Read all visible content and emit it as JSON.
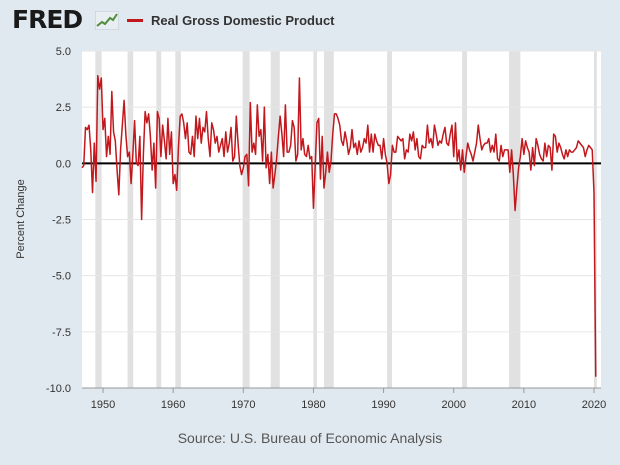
{
  "brand": {
    "logo_text": "FRED",
    "logo_mark_icon": "trend-chart-icon"
  },
  "chart_data": {
    "type": "line",
    "title": "",
    "xlabel": "",
    "ylabel": "Percent Change",
    "xlim": [
      1947,
      2021
    ],
    "ylim": [
      -10,
      5
    ],
    "x_ticks": [
      1950,
      1960,
      1970,
      1980,
      1990,
      2000,
      2010,
      2020
    ],
    "x_tick_labels": [
      "1950",
      "1960",
      "1970",
      "1980",
      "1990",
      "2000",
      "2010",
      "2020"
    ],
    "y_ticks": [
      5,
      2.5,
      0,
      -2.5,
      -5,
      -7.5,
      -10
    ],
    "y_tick_labels": [
      "5.0",
      "2.5",
      "0.0",
      "-2.5",
      "-5.0",
      "-7.5",
      "-10.0"
    ],
    "grid": true,
    "legend_position": "top-left",
    "recessions": [
      [
        1948.9,
        1949.8
      ],
      [
        1953.5,
        1954.3
      ],
      [
        1957.6,
        1958.3
      ],
      [
        1960.3,
        1961.1
      ],
      [
        1969.9,
        1970.9
      ],
      [
        1973.9,
        1975.2
      ],
      [
        1980.0,
        1980.5
      ],
      [
        1981.5,
        1982.9
      ],
      [
        1990.5,
        1991.2
      ],
      [
        2001.2,
        2001.9
      ],
      [
        2007.9,
        2009.5
      ],
      [
        2020.0,
        2020.4
      ]
    ],
    "series": [
      {
        "name": "Real Gross Domestic Product",
        "color": "#c2171c",
        "points": [
          [
            1947.0,
            -0.2
          ],
          [
            1947.25,
            -0.1
          ],
          [
            1947.5,
            1.6
          ],
          [
            1947.75,
            1.5
          ],
          [
            1948.0,
            1.7
          ],
          [
            1948.25,
            0.6
          ],
          [
            1948.5,
            -1.3
          ],
          [
            1948.75,
            0.9
          ],
          [
            1949.0,
            -0.8
          ],
          [
            1949.25,
            3.9
          ],
          [
            1949.5,
            3.3
          ],
          [
            1949.75,
            3.8
          ],
          [
            1950.0,
            1.5
          ],
          [
            1950.25,
            2.0
          ],
          [
            1950.5,
            0.3
          ],
          [
            1950.75,
            1.2
          ],
          [
            1951.0,
            0.4
          ],
          [
            1951.25,
            3.2
          ],
          [
            1951.5,
            1.4
          ],
          [
            1951.75,
            1.0
          ],
          [
            1952.0,
            -0.3
          ],
          [
            1952.25,
            -1.4
          ],
          [
            1952.5,
            0.6
          ],
          [
            1952.75,
            1.7
          ],
          [
            1953.0,
            2.8
          ],
          [
            1953.25,
            1.3
          ],
          [
            1953.5,
            0.3
          ],
          [
            1953.75,
            0.5
          ],
          [
            1954.0,
            -0.9
          ],
          [
            1954.25,
            0.4
          ],
          [
            1954.5,
            1.9
          ],
          [
            1954.75,
            0.0
          ],
          [
            1955.0,
            -0.1
          ],
          [
            1955.25,
            1.2
          ],
          [
            1955.5,
            -2.5
          ],
          [
            1955.75,
            0.4
          ],
          [
            1956.0,
            2.3
          ],
          [
            1956.25,
            1.8
          ],
          [
            1956.5,
            2.2
          ],
          [
            1956.75,
            1.2
          ],
          [
            1957.0,
            -0.3
          ],
          [
            1957.25,
            0.9
          ],
          [
            1957.5,
            -1.1
          ],
          [
            1957.75,
            2.3
          ],
          [
            1958.0,
            2.0
          ],
          [
            1958.25,
            0.3
          ],
          [
            1958.5,
            1.7
          ],
          [
            1958.75,
            1.0
          ],
          [
            1959.0,
            0.2
          ],
          [
            1959.25,
            2.0
          ],
          [
            1959.5,
            0.4
          ],
          [
            1959.75,
            1.4
          ],
          [
            1960.0,
            -0.9
          ],
          [
            1960.25,
            -0.5
          ],
          [
            1960.5,
            -1.2
          ],
          [
            1960.75,
            0.7
          ],
          [
            1961.0,
            2.1
          ],
          [
            1961.25,
            2.2
          ],
          [
            1961.5,
            1.8
          ],
          [
            1961.75,
            1.1
          ],
          [
            1962.0,
            1.8
          ],
          [
            1962.25,
            0.5
          ],
          [
            1962.5,
            0.4
          ],
          [
            1962.75,
            1.2
          ],
          [
            1963.0,
            0.3
          ],
          [
            1963.25,
            2.1
          ],
          [
            1963.5,
            1.1
          ],
          [
            1963.75,
            2.0
          ],
          [
            1964.0,
            0.9
          ],
          [
            1964.25,
            1.6
          ],
          [
            1964.5,
            1.4
          ],
          [
            1964.75,
            2.3
          ],
          [
            1965.0,
            1.1
          ],
          [
            1965.25,
            0.3
          ],
          [
            1965.5,
            1.8
          ],
          [
            1965.75,
            1.5
          ],
          [
            1966.0,
            0.9
          ],
          [
            1966.25,
            1.2
          ],
          [
            1966.5,
            0.5
          ],
          [
            1966.75,
            0.8
          ],
          [
            1967.0,
            1.1
          ],
          [
            1967.25,
            0.3
          ],
          [
            1967.5,
            1.4
          ],
          [
            1967.75,
            0.5
          ],
          [
            1968.0,
            0.9
          ],
          [
            1968.25,
            1.6
          ],
          [
            1968.5,
            0.1
          ],
          [
            1968.75,
            0.3
          ],
          [
            1969.0,
            2.1
          ],
          [
            1969.25,
            0.9
          ],
          [
            1969.5,
            -0.1
          ],
          [
            1969.75,
            -0.5
          ],
          [
            1970.0,
            -0.2
          ],
          [
            1970.25,
            0.3
          ],
          [
            1970.5,
            0.4
          ],
          [
            1970.75,
            -1.0
          ],
          [
            1971.0,
            2.7
          ],
          [
            1971.25,
            0.5
          ],
          [
            1971.5,
            0.9
          ],
          [
            1971.75,
            0.4
          ],
          [
            1972.0,
            2.6
          ],
          [
            1972.25,
            1.2
          ],
          [
            1972.5,
            1.5
          ],
          [
            1972.75,
            0.1
          ],
          [
            1973.0,
            2.5
          ],
          [
            1973.25,
            -0.2
          ],
          [
            1973.5,
            0.4
          ],
          [
            1973.75,
            -0.9
          ],
          [
            1974.0,
            0.5
          ],
          [
            1974.25,
            -1.1
          ],
          [
            1974.5,
            -0.5
          ],
          [
            1974.75,
            0.2
          ],
          [
            1975.0,
            1.2
          ],
          [
            1975.25,
            2.1
          ],
          [
            1975.5,
            1.3
          ],
          [
            1975.75,
            0.3
          ],
          [
            1976.0,
            2.6
          ],
          [
            1976.25,
            0.5
          ],
          [
            1976.5,
            0.5
          ],
          [
            1976.75,
            0.8
          ],
          [
            1977.0,
            1.9
          ],
          [
            1977.25,
            1.6
          ],
          [
            1977.5,
            0.1
          ],
          [
            1977.75,
            0.4
          ],
          [
            1978.0,
            3.8
          ],
          [
            1978.25,
            0.6
          ],
          [
            1978.5,
            1.1
          ],
          [
            1978.75,
            0.4
          ],
          [
            1979.0,
            0.3
          ],
          [
            1979.25,
            0.8
          ],
          [
            1979.5,
            0.2
          ],
          [
            1979.75,
            0.3
          ],
          [
            1980.0,
            -2.0
          ],
          [
            1980.25,
            -0.1
          ],
          [
            1980.5,
            1.8
          ],
          [
            1980.75,
            2.0
          ],
          [
            1981.0,
            -0.7
          ],
          [
            1981.25,
            1.2
          ],
          [
            1981.5,
            -1.1
          ],
          [
            1981.75,
            -0.4
          ],
          [
            1982.0,
            0.5
          ],
          [
            1982.25,
            -0.4
          ],
          [
            1982.5,
            0.1
          ],
          [
            1982.75,
            1.3
          ],
          [
            1983.0,
            2.2
          ],
          [
            1983.25,
            2.2
          ],
          [
            1983.5,
            2.0
          ],
          [
            1983.75,
            1.7
          ],
          [
            1984.0,
            1.0
          ],
          [
            1984.25,
            0.8
          ],
          [
            1984.5,
            1.4
          ],
          [
            1984.75,
            1.0
          ],
          [
            1985.0,
            0.4
          ],
          [
            1985.25,
            0.7
          ],
          [
            1985.5,
            1.5
          ],
          [
            1985.75,
            0.7
          ],
          [
            1986.0,
            0.9
          ],
          [
            1986.25,
            0.4
          ],
          [
            1986.5,
            1.0
          ],
          [
            1986.75,
            0.5
          ],
          [
            1987.0,
            0.7
          ],
          [
            1987.25,
            1.1
          ],
          [
            1987.5,
            0.9
          ],
          [
            1987.75,
            1.7
          ],
          [
            1988.0,
            0.5
          ],
          [
            1988.25,
            1.3
          ],
          [
            1988.5,
            0.5
          ],
          [
            1988.75,
            1.3
          ],
          [
            1989.0,
            1.0
          ],
          [
            1989.25,
            0.8
          ],
          [
            1989.5,
            0.8
          ],
          [
            1989.75,
            0.2
          ],
          [
            1990.0,
            1.1
          ],
          [
            1990.25,
            0.4
          ],
          [
            1990.5,
            0.0
          ],
          [
            1990.75,
            -0.9
          ],
          [
            1991.0,
            -0.5
          ],
          [
            1991.25,
            0.8
          ],
          [
            1991.5,
            0.5
          ],
          [
            1991.75,
            0.5
          ],
          [
            1992.0,
            1.2
          ],
          [
            1992.25,
            1.1
          ],
          [
            1992.5,
            1.0
          ],
          [
            1992.75,
            1.1
          ],
          [
            1993.0,
            0.2
          ],
          [
            1993.25,
            0.6
          ],
          [
            1993.5,
            0.5
          ],
          [
            1993.75,
            1.3
          ],
          [
            1994.0,
            1.0
          ],
          [
            1994.25,
            1.4
          ],
          [
            1994.5,
            0.6
          ],
          [
            1994.75,
            1.1
          ],
          [
            1995.0,
            0.3
          ],
          [
            1995.25,
            0.2
          ],
          [
            1995.5,
            0.8
          ],
          [
            1995.75,
            0.7
          ],
          [
            1996.0,
            0.7
          ],
          [
            1996.25,
            1.7
          ],
          [
            1996.5,
            0.9
          ],
          [
            1996.75,
            1.1
          ],
          [
            1997.0,
            0.7
          ],
          [
            1997.25,
            1.7
          ],
          [
            1997.5,
            1.3
          ],
          [
            1997.75,
            0.8
          ],
          [
            1998.0,
            1.0
          ],
          [
            1998.25,
            0.9
          ],
          [
            1998.5,
            1.3
          ],
          [
            1998.75,
            1.6
          ],
          [
            1999.0,
            0.9
          ],
          [
            1999.25,
            0.8
          ],
          [
            1999.5,
            1.3
          ],
          [
            1999.75,
            1.7
          ],
          [
            2000.0,
            0.3
          ],
          [
            2000.25,
            1.8
          ],
          [
            2000.5,
            0.1
          ],
          [
            2000.75,
            0.6
          ],
          [
            2001.0,
            -0.3
          ],
          [
            2001.25,
            0.6
          ],
          [
            2001.5,
            -0.4
          ],
          [
            2001.75,
            0.3
          ],
          [
            2002.0,
            0.9
          ],
          [
            2002.25,
            0.6
          ],
          [
            2002.5,
            0.4
          ],
          [
            2002.75,
            0.1
          ],
          [
            2003.0,
            0.5
          ],
          [
            2003.25,
            0.9
          ],
          [
            2003.5,
            1.7
          ],
          [
            2003.75,
            1.1
          ],
          [
            2004.0,
            0.6
          ],
          [
            2004.25,
            0.8
          ],
          [
            2004.5,
            0.9
          ],
          [
            2004.75,
            0.9
          ],
          [
            2005.0,
            1.1
          ],
          [
            2005.25,
            0.5
          ],
          [
            2005.5,
            0.8
          ],
          [
            2005.75,
            0.5
          ],
          [
            2006.0,
            1.3
          ],
          [
            2006.25,
            0.2
          ],
          [
            2006.5,
            0.1
          ],
          [
            2006.75,
            0.8
          ],
          [
            2007.0,
            0.3
          ],
          [
            2007.25,
            0.6
          ],
          [
            2007.5,
            0.6
          ],
          [
            2007.75,
            0.6
          ],
          [
            2008.0,
            -0.4
          ],
          [
            2008.25,
            0.6
          ],
          [
            2008.5,
            -0.5
          ],
          [
            2008.75,
            -2.1
          ],
          [
            2009.0,
            -1.1
          ],
          [
            2009.25,
            -0.2
          ],
          [
            2009.5,
            0.3
          ],
          [
            2009.75,
            1.1
          ],
          [
            2010.0,
            0.4
          ],
          [
            2010.25,
            1.0
          ],
          [
            2010.5,
            0.7
          ],
          [
            2010.75,
            0.5
          ],
          [
            2011.0,
            -0.3
          ],
          [
            2011.25,
            0.7
          ],
          [
            2011.5,
            -0.1
          ],
          [
            2011.75,
            1.1
          ],
          [
            2012.0,
            0.8
          ],
          [
            2012.25,
            0.4
          ],
          [
            2012.5,
            0.2
          ],
          [
            2012.75,
            0.1
          ],
          [
            2013.0,
            0.9
          ],
          [
            2013.25,
            0.3
          ],
          [
            2013.5,
            0.8
          ],
          [
            2013.75,
            0.7
          ],
          [
            2014.0,
            -0.3
          ],
          [
            2014.25,
            1.3
          ],
          [
            2014.5,
            1.2
          ],
          [
            2014.75,
            0.5
          ],
          [
            2015.0,
            0.9
          ],
          [
            2015.25,
            0.7
          ],
          [
            2015.5,
            0.4
          ],
          [
            2015.75,
            0.2
          ],
          [
            2016.0,
            0.6
          ],
          [
            2016.25,
            0.3
          ],
          [
            2016.5,
            0.6
          ],
          [
            2016.75,
            0.5
          ],
          [
            2017.0,
            0.5
          ],
          [
            2017.25,
            0.6
          ],
          [
            2017.5,
            0.7
          ],
          [
            2017.75,
            1.0
          ],
          [
            2018.0,
            0.9
          ],
          [
            2018.25,
            0.8
          ],
          [
            2018.5,
            0.7
          ],
          [
            2018.75,
            0.3
          ],
          [
            2019.0,
            0.6
          ],
          [
            2019.25,
            0.8
          ],
          [
            2019.5,
            0.7
          ],
          [
            2019.75,
            0.6
          ],
          [
            2020.0,
            -1.3
          ],
          [
            2020.25,
            -9.5
          ]
        ]
      }
    ]
  },
  "source": {
    "text": "Source: U.S. Bureau of Economic Analysis"
  }
}
